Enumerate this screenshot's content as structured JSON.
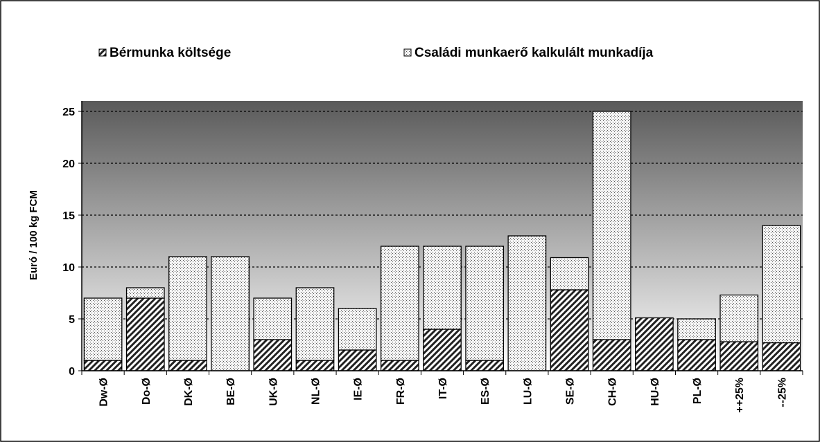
{
  "chart_data": {
    "type": "stacked_bar",
    "y_label": "Euró / 100 kg FCM",
    "categories": [
      "Dw-Ø",
      "Do-Ø",
      "DK-Ø",
      "BE-Ø",
      "UK-Ø",
      "NL-Ø",
      "IE-Ø",
      "FR-Ø",
      "IT-Ø",
      "ES-Ø",
      "LU-Ø",
      "SE-Ø",
      "CH-Ø",
      "HU-Ø",
      "PL-Ø",
      "++25%",
      "--25%"
    ],
    "series": [
      {
        "name": "Bérmunka költsége",
        "color": "#000000",
        "pattern": "hatch",
        "values": [
          1,
          7,
          1,
          0,
          3,
          1,
          2,
          1,
          4,
          1,
          0,
          7.8,
          3,
          5.1,
          3,
          2.8,
          2.7
        ]
      },
      {
        "name": "Családi munkaerő kalkulált munkadíja",
        "color": "#000000",
        "pattern": "dots",
        "values": [
          6,
          1,
          10,
          11,
          4,
          7,
          4,
          11,
          8,
          11,
          13,
          3.1,
          22,
          0,
          2,
          4.5,
          11.3
        ]
      }
    ],
    "ylim": [
      0,
      26
    ],
    "yticks": [
      0,
      5,
      10,
      15,
      20,
      25
    ],
    "grid": true
  }
}
